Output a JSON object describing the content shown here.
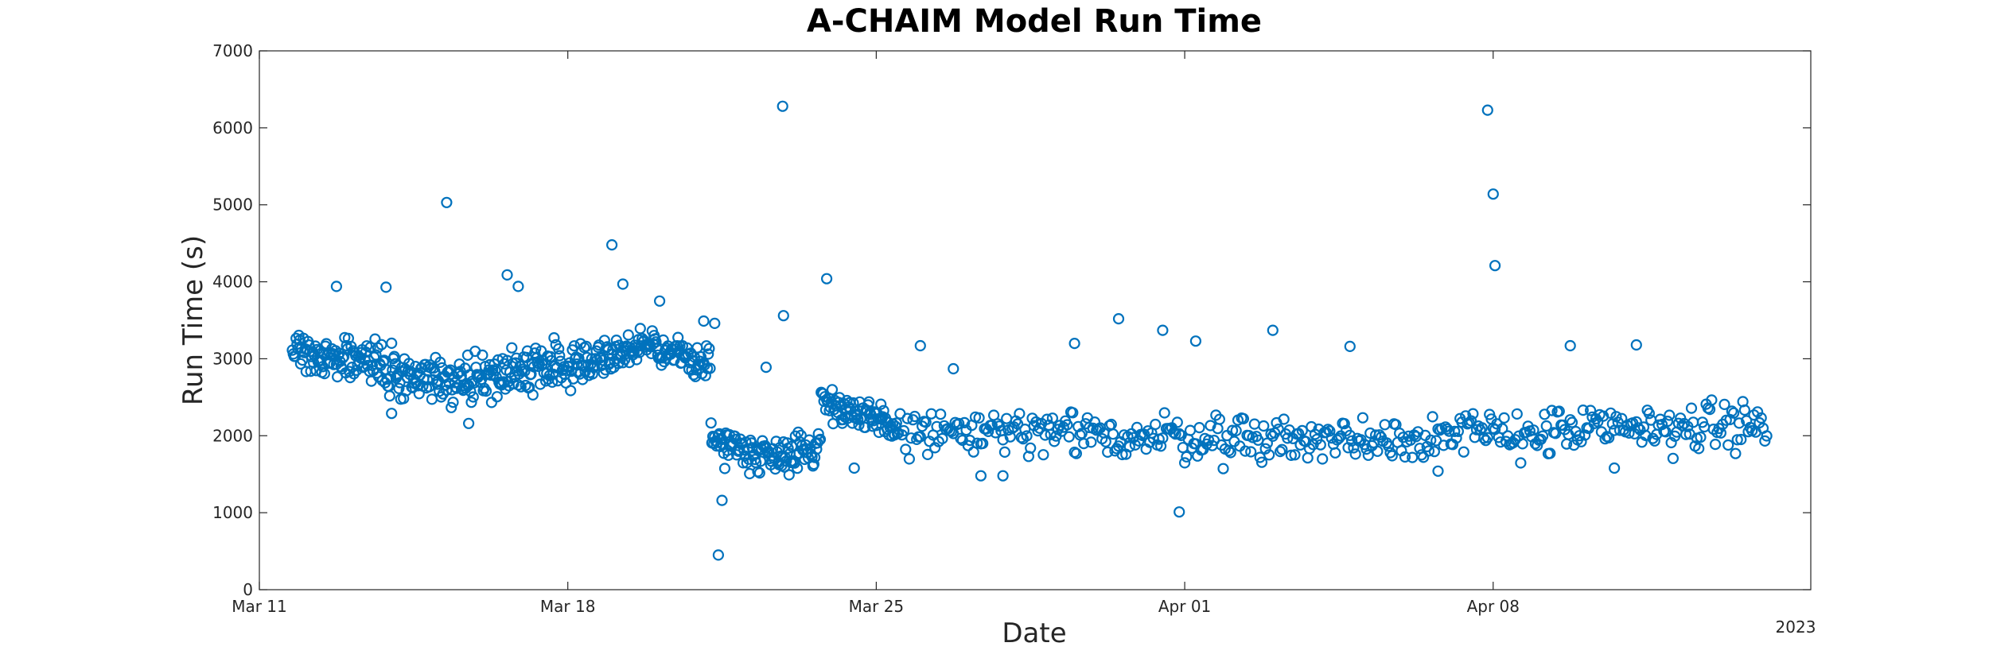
{
  "chart_data": {
    "type": "scatter",
    "title": "A-CHAIM Model Run Time",
    "xlabel": "Date",
    "ylabel": "Run Time (s)",
    "year_label": "2023",
    "x_unit": "date",
    "xlim": [
      "2023-03-11T00:00",
      "2023-04-15T05:00"
    ],
    "ylim": [
      0,
      7000
    ],
    "x_ticks": [
      {
        "date": "2023-03-11",
        "label": "Mar 11"
      },
      {
        "date": "2023-03-18",
        "label": "Mar 18"
      },
      {
        "date": "2023-03-25",
        "label": "Mar 25"
      },
      {
        "date": "2023-04-01",
        "label": "Apr 01"
      },
      {
        "date": "2023-04-08",
        "label": "Apr 08"
      }
    ],
    "y_ticks": [
      0,
      1000,
      2000,
      3000,
      4000,
      5000,
      6000,
      7000
    ],
    "grid": false,
    "marker": "open-circle",
    "marker_color": "#0072BD",
    "segments": [
      {
        "start": "2023-03-11T18:00",
        "end": "2023-03-18T06:00",
        "interval_hours": 0.5,
        "base": [
          3150,
          2700,
          2950
        ],
        "spread": 320
      },
      {
        "start": "2023-03-18T06:00",
        "end": "2023-03-21T06:00",
        "interval_hours": 0.5,
        "base": [
          2950,
          3150,
          2950
        ],
        "spread": 220
      },
      {
        "start": "2023-03-21T06:00",
        "end": "2023-03-23T18:00",
        "interval_hours": 0.5,
        "base": [
          1950,
          1750,
          1850
        ],
        "spread": 260
      },
      {
        "start": "2023-03-23T18:00",
        "end": "2023-03-25T12:00",
        "interval_hours": 0.5,
        "base": [
          2500,
          2250,
          2100
        ],
        "spread": 230
      },
      {
        "start": "2023-03-25T12:00",
        "end": "2023-04-14T06:00",
        "interval_hours": 1.0,
        "base": [
          2050,
          1950,
          2150
        ],
        "spread": 330
      }
    ],
    "outliers": [
      {
        "date": "2023-03-15T06:00",
        "value": 5030
      },
      {
        "date": "2023-03-19T00:00",
        "value": 4480
      },
      {
        "date": "2023-03-19T06:00",
        "value": 3970
      },
      {
        "date": "2023-03-15T18:00",
        "value": 2160
      },
      {
        "date": "2023-03-14T00:00",
        "value": 2290
      },
      {
        "date": "2023-03-12T18:00",
        "value": 3940
      },
      {
        "date": "2023-03-13T21:00",
        "value": 3930
      },
      {
        "date": "2023-03-16T15:00",
        "value": 4090
      },
      {
        "date": "2023-03-16T21:00",
        "value": 3940
      },
      {
        "date": "2023-03-20T02:00",
        "value": 3750
      },
      {
        "date": "2023-03-21T02:00",
        "value": 3490
      },
      {
        "date": "2023-03-21T08:00",
        "value": 3460
      },
      {
        "date": "2023-03-21T12:00",
        "value": 1160
      },
      {
        "date": "2023-03-21T10:00",
        "value": 450
      },
      {
        "date": "2023-03-22T21:00",
        "value": 6280
      },
      {
        "date": "2023-03-22T21:30",
        "value": 3560
      },
      {
        "date": "2023-03-22T12:00",
        "value": 2890
      },
      {
        "date": "2023-03-23T21:00",
        "value": 4040
      },
      {
        "date": "2023-03-24T12:00",
        "value": 1580
      },
      {
        "date": "2023-03-26T00:00",
        "value": 3170
      },
      {
        "date": "2023-03-26T18:00",
        "value": 2870
      },
      {
        "date": "2023-03-27T09:00",
        "value": 1480
      },
      {
        "date": "2023-03-27T21:00",
        "value": 1480
      },
      {
        "date": "2023-03-29T12:00",
        "value": 3200
      },
      {
        "date": "2023-03-30T12:00",
        "value": 3520
      },
      {
        "date": "2023-03-31T12:00",
        "value": 3370
      },
      {
        "date": "2023-03-31T21:00",
        "value": 1010
      },
      {
        "date": "2023-04-01T06:00",
        "value": 3230
      },
      {
        "date": "2023-04-03T00:00",
        "value": 3370
      },
      {
        "date": "2023-04-04T18:00",
        "value": 3160
      },
      {
        "date": "2023-04-06T18:00",
        "value": 1540
      },
      {
        "date": "2023-04-07T21:00",
        "value": 6230
      },
      {
        "date": "2023-04-08T00:00",
        "value": 5140
      },
      {
        "date": "2023-04-08T01:00",
        "value": 4210
      },
      {
        "date": "2023-04-09T18:00",
        "value": 3170
      },
      {
        "date": "2023-04-11T06:00",
        "value": 3180
      },
      {
        "date": "2023-04-10T18:00",
        "value": 1580
      }
    ]
  }
}
